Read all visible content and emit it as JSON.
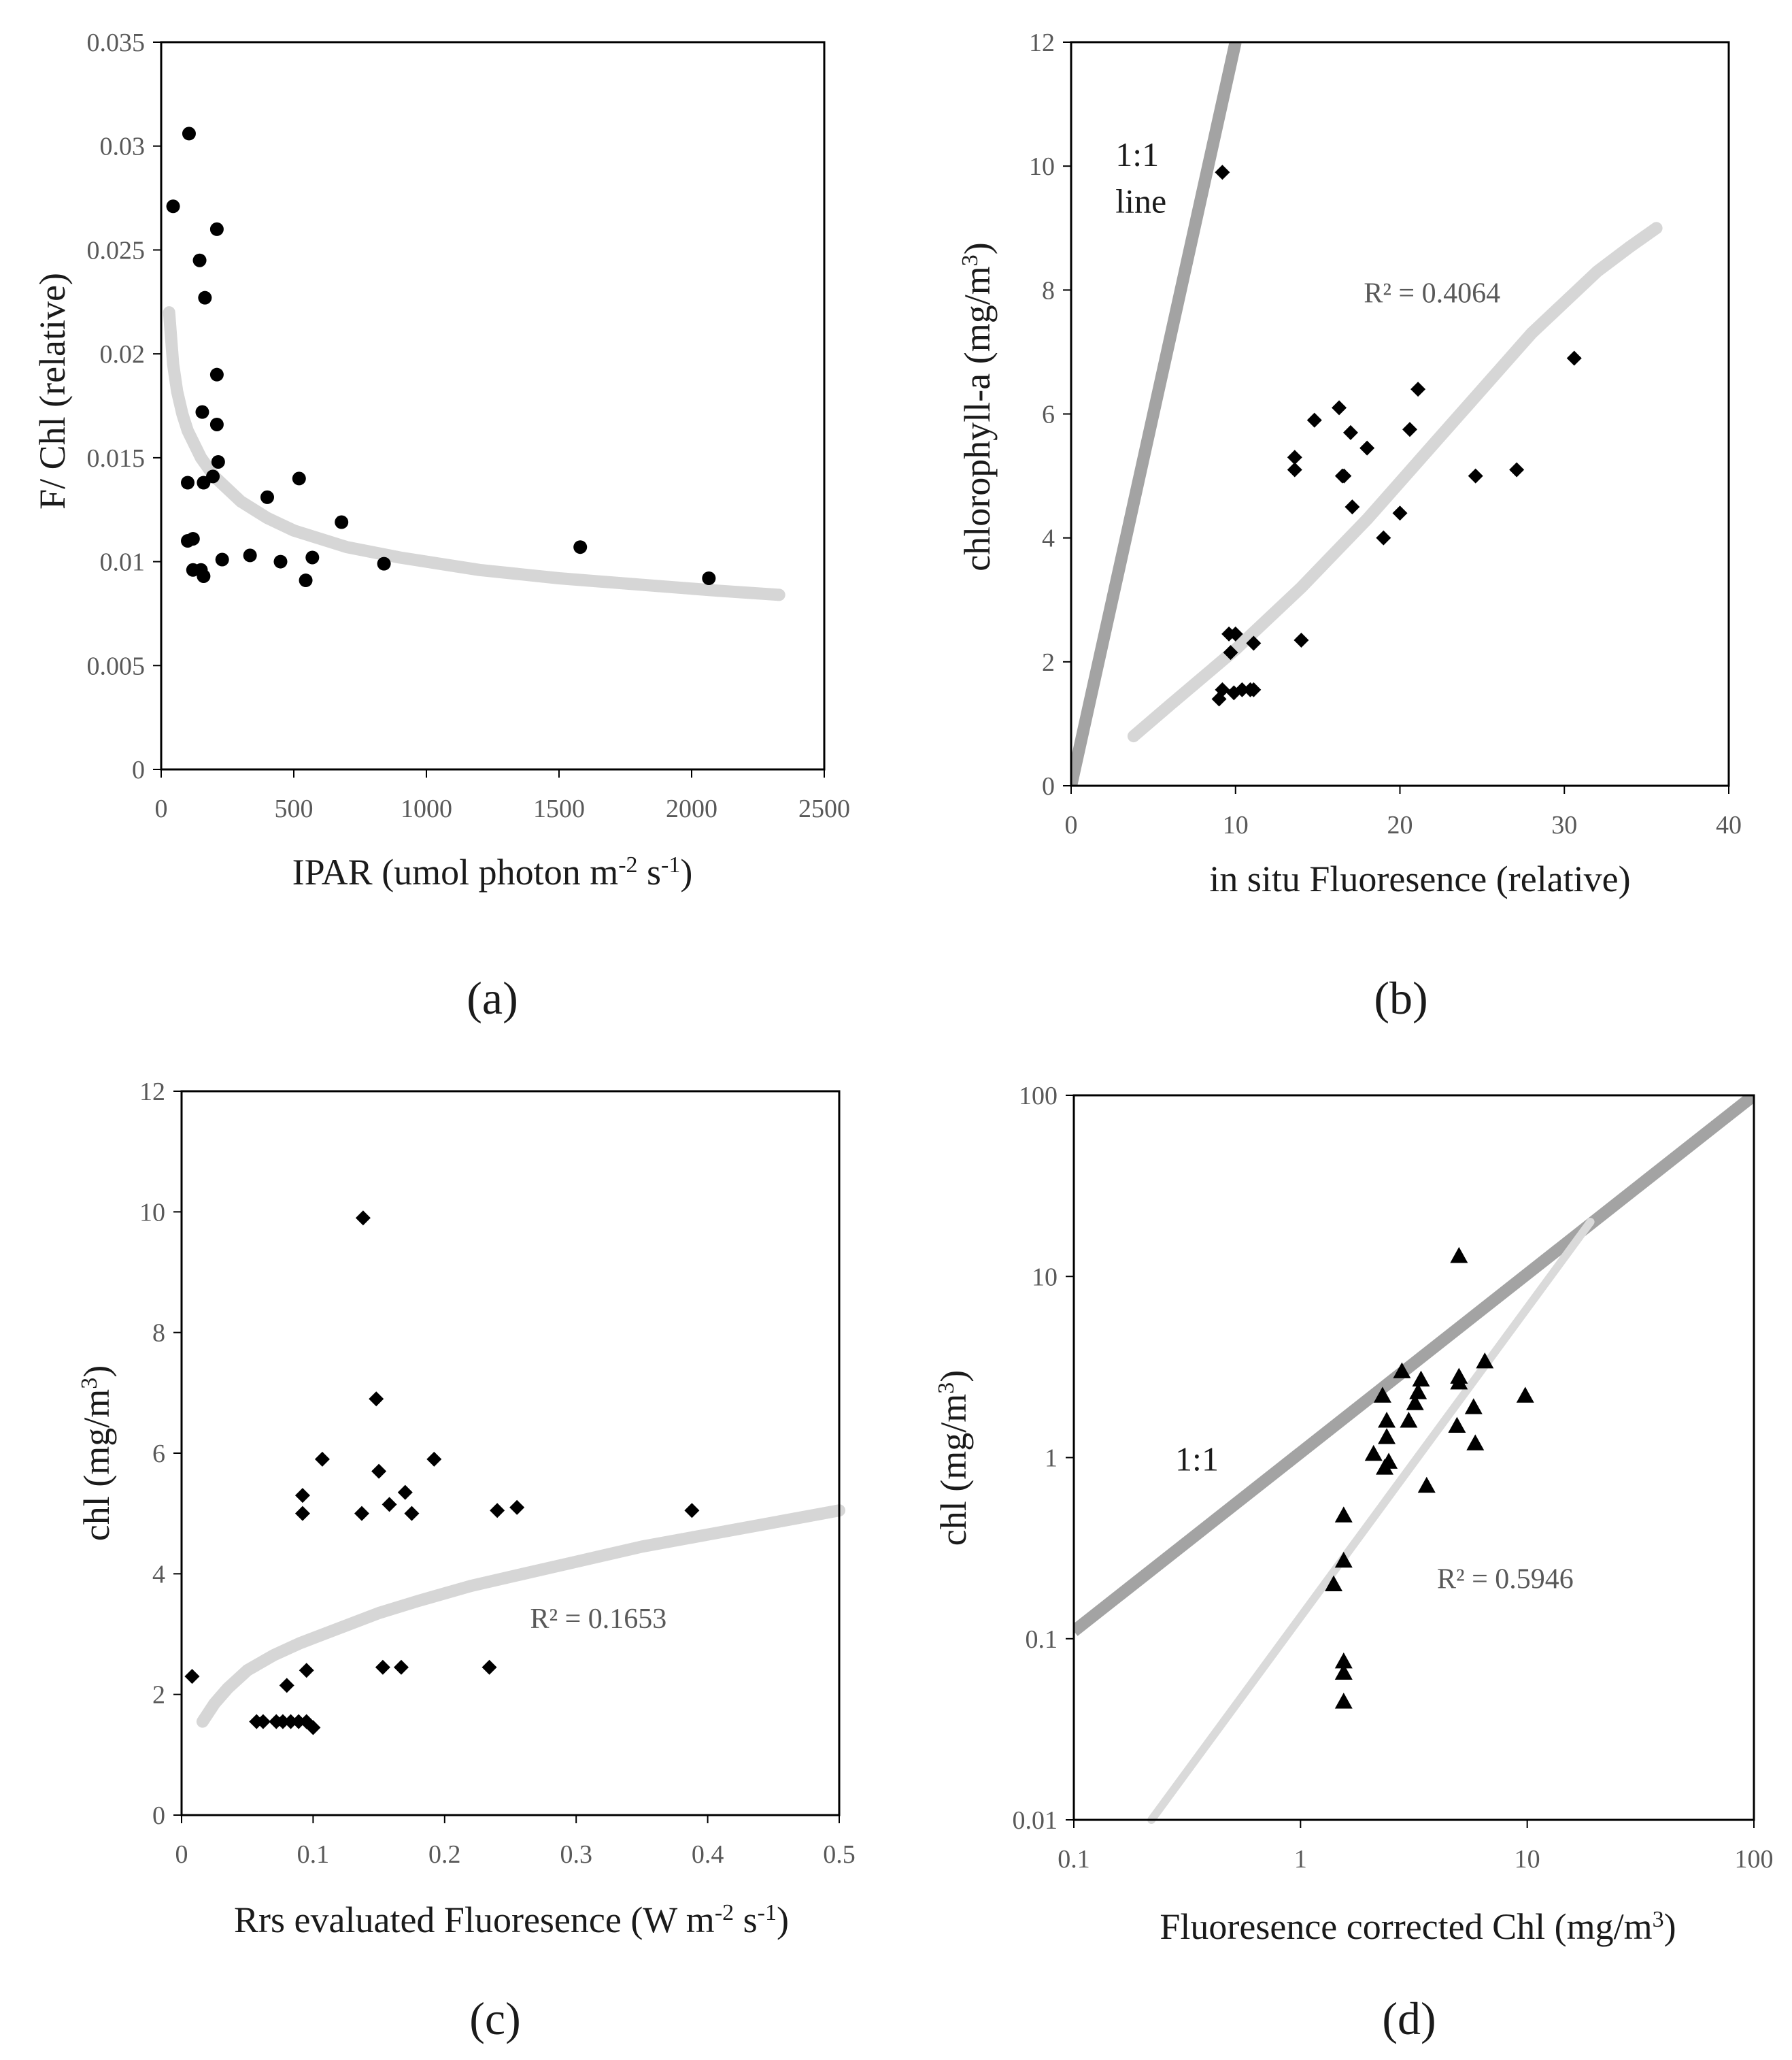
{
  "chart_data": [
    {
      "id": "a",
      "type": "scatter",
      "panel_label": "(a)",
      "title": "",
      "xlabel": "IPAR (umol photon m-2 s-1)",
      "xlabel_base": "IPAR (umol photon m",
      "xlabel_sup1": "-2",
      "xlabel_mid": " s",
      "xlabel_sup2": "-1",
      "xlabel_end": ")",
      "ylabel": "F/ Chl (relative)",
      "xscale": "linear",
      "yscale": "linear",
      "xlim": [
        0,
        2500
      ],
      "ylim": [
        0,
        0.035
      ],
      "xticks": [
        0,
        500,
        1000,
        1500,
        2000,
        2500
      ],
      "xtick_labels": [
        "0",
        "500",
        "1000",
        "1500",
        "2000",
        "2500"
      ],
      "yticks": [
        0,
        0.005,
        0.01,
        0.015,
        0.02,
        0.025,
        0.03,
        0.035
      ],
      "ytick_labels": [
        "0",
        "0.005",
        "0.01",
        "0.015",
        "0.02",
        "0.025",
        "0.03",
        "0.035"
      ],
      "marker": "circle",
      "points": [
        [
          45,
          0.0271
        ],
        [
          105,
          0.0306
        ],
        [
          145,
          0.0245
        ],
        [
          165,
          0.0227
        ],
        [
          210,
          0.026
        ],
        [
          210,
          0.019
        ],
        [
          155,
          0.0172
        ],
        [
          210,
          0.0166
        ],
        [
          215,
          0.0148
        ],
        [
          195,
          0.0141
        ],
        [
          160,
          0.0138
        ],
        [
          100,
          0.0138
        ],
        [
          100,
          0.011
        ],
        [
          120,
          0.0111
        ],
        [
          120,
          0.0096
        ],
        [
          150,
          0.0096
        ],
        [
          160,
          0.0093
        ],
        [
          230,
          0.0101
        ],
        [
          335,
          0.0103
        ],
        [
          400,
          0.0131
        ],
        [
          450,
          0.01
        ],
        [
          520,
          0.014
        ],
        [
          545,
          0.0091
        ],
        [
          570,
          0.0102
        ],
        [
          680,
          0.0119
        ],
        [
          840,
          0.0099
        ],
        [
          1580,
          0.0107
        ],
        [
          2065,
          0.0092
        ]
      ],
      "trend": {
        "kind": "power",
        "points": [
          [
            30,
            0.022
          ],
          [
            45,
            0.0195
          ],
          [
            60,
            0.0182
          ],
          [
            80,
            0.0171
          ],
          [
            100,
            0.0163
          ],
          [
            150,
            0.015
          ],
          [
            200,
            0.0141
          ],
          [
            300,
            0.0129
          ],
          [
            400,
            0.0121
          ],
          [
            500,
            0.0115
          ],
          [
            700,
            0.0107
          ],
          [
            900,
            0.0102
          ],
          [
            1200,
            0.0096
          ],
          [
            1500,
            0.0092
          ],
          [
            1800,
            0.0089
          ],
          [
            2100,
            0.0086
          ],
          [
            2330,
            0.0084
          ]
        ]
      }
    },
    {
      "id": "b",
      "type": "scatter",
      "panel_label": "(b)",
      "title": "",
      "xlabel": "in situ Fluoresence  (relative)",
      "ylabel": "chlorophyll-a (mg/m3)",
      "ylabel_base": "chlorophyll-a (mg/m",
      "ylabel_sup": "3",
      "ylabel_end": ")",
      "xscale": "linear",
      "yscale": "linear",
      "xlim": [
        0,
        40
      ],
      "ylim": [
        0,
        12
      ],
      "xticks": [
        0,
        10,
        20,
        30,
        40
      ],
      "xtick_labels": [
        "0",
        "10",
        "20",
        "30",
        "40"
      ],
      "yticks": [
        0,
        2,
        4,
        6,
        8,
        10,
        12
      ],
      "ytick_labels": [
        "0",
        "2",
        "4",
        "6",
        "8",
        "10",
        "12"
      ],
      "marker": "diamond",
      "points": [
        [
          9.2,
          9.9
        ],
        [
          9.0,
          1.4
        ],
        [
          9.2,
          1.55
        ],
        [
          9.6,
          2.45
        ],
        [
          10.0,
          2.45
        ],
        [
          9.7,
          2.15
        ],
        [
          9.9,
          1.5
        ],
        [
          10.4,
          1.55
        ],
        [
          10.9,
          1.55
        ],
        [
          11.1,
          1.55
        ],
        [
          11.1,
          2.3
        ],
        [
          14.0,
          2.35
        ],
        [
          13.6,
          5.3
        ],
        [
          13.6,
          5.1
        ],
        [
          14.8,
          5.9
        ],
        [
          16.3,
          6.1
        ],
        [
          16.6,
          5.0
        ],
        [
          16.5,
          5.0
        ],
        [
          17.0,
          5.7
        ],
        [
          17.1,
          4.5
        ],
        [
          18.0,
          5.45
        ],
        [
          19.0,
          4.0
        ],
        [
          20.0,
          4.4
        ],
        [
          20.6,
          5.75
        ],
        [
          21.1,
          6.4
        ],
        [
          24.6,
          5.0
        ],
        [
          27.1,
          5.1
        ],
        [
          30.6,
          6.9
        ]
      ],
      "one_to_one": {
        "points": [
          [
            0,
            0
          ],
          [
            10,
            12
          ]
        ]
      },
      "trend": {
        "kind": "power",
        "r2_label": "R² = 0.4064",
        "points": [
          [
            3.8,
            0.8
          ],
          [
            6,
            1.3
          ],
          [
            8,
            1.75
          ],
          [
            10,
            2.2
          ],
          [
            12,
            2.7
          ],
          [
            14,
            3.2
          ],
          [
            16,
            3.75
          ],
          [
            18,
            4.3
          ],
          [
            20,
            4.9
          ],
          [
            22,
            5.5
          ],
          [
            24,
            6.1
          ],
          [
            26,
            6.7
          ],
          [
            28,
            7.3
          ],
          [
            30,
            7.8
          ],
          [
            32,
            8.3
          ],
          [
            34,
            8.7
          ],
          [
            35.6,
            9.0
          ]
        ]
      },
      "annotations": [
        {
          "text": "1:1",
          "x": 2.7,
          "y": 10.0
        },
        {
          "text": "line",
          "x": 2.7,
          "y": 9.25
        },
        {
          "text": "R² = 0.4064",
          "x": 17.8,
          "y": 7.8
        }
      ]
    },
    {
      "id": "c",
      "type": "scatter",
      "panel_label": "(c)",
      "title": "",
      "xlabel": "Rrs evaluated Fluoresence  (W m-2 s-1)",
      "xlabel_base": "Rrs evaluated Fluoresence  (W m",
      "xlabel_sup1": "-2",
      "xlabel_mid": " s",
      "xlabel_sup2": "-1",
      "xlabel_end": ")",
      "ylabel": "chl (mg/m3)",
      "ylabel_base": "chl (mg/m",
      "ylabel_sup": "3",
      "ylabel_end": ")",
      "xscale": "linear",
      "yscale": "linear",
      "xlim": [
        0,
        0.5
      ],
      "ylim": [
        0,
        12
      ],
      "xticks": [
        0,
        0.1,
        0.2,
        0.3,
        0.4,
        0.5
      ],
      "xtick_labels": [
        "0",
        "0.1",
        "0.2",
        "0.3",
        "0.4",
        "0.5"
      ],
      "yticks": [
        0,
        2,
        4,
        6,
        8,
        10,
        12
      ],
      "ytick_labels": [
        "0",
        "2",
        "4",
        "6",
        "8",
        "10",
        "12"
      ],
      "marker": "diamond",
      "points": [
        [
          0.008,
          2.3
        ],
        [
          0.057,
          1.55
        ],
        [
          0.062,
          1.55
        ],
        [
          0.072,
          1.55
        ],
        [
          0.077,
          1.55
        ],
        [
          0.083,
          1.55
        ],
        [
          0.089,
          1.55
        ],
        [
          0.095,
          1.55
        ],
        [
          0.1,
          1.45
        ],
        [
          0.08,
          2.15
        ],
        [
          0.095,
          2.4
        ],
        [
          0.092,
          5.3
        ],
        [
          0.092,
          5.0
        ],
        [
          0.107,
          5.9
        ],
        [
          0.138,
          9.9
        ],
        [
          0.137,
          5.0
        ],
        [
          0.148,
          6.9
        ],
        [
          0.15,
          5.7
        ],
        [
          0.153,
          2.45
        ],
        [
          0.158,
          5.15
        ],
        [
          0.167,
          2.45
        ],
        [
          0.17,
          5.35
        ],
        [
          0.175,
          5.0
        ],
        [
          0.192,
          5.9
        ],
        [
          0.234,
          2.45
        ],
        [
          0.24,
          5.05
        ],
        [
          0.255,
          5.1
        ],
        [
          0.388,
          5.05
        ]
      ],
      "trend": {
        "kind": "log",
        "r2_label": "R² = 0.1653",
        "points": [
          [
            0.016,
            1.55
          ],
          [
            0.025,
            1.85
          ],
          [
            0.035,
            2.1
          ],
          [
            0.05,
            2.4
          ],
          [
            0.07,
            2.65
          ],
          [
            0.09,
            2.85
          ],
          [
            0.12,
            3.1
          ],
          [
            0.15,
            3.35
          ],
          [
            0.18,
            3.55
          ],
          [
            0.22,
            3.8
          ],
          [
            0.26,
            4.0
          ],
          [
            0.3,
            4.2
          ],
          [
            0.35,
            4.45
          ],
          [
            0.4,
            4.65
          ],
          [
            0.45,
            4.85
          ],
          [
            0.5,
            5.05
          ]
        ]
      },
      "annotations": [
        {
          "text": "R² = 0.1653",
          "x": 0.265,
          "y": 3.1
        }
      ]
    },
    {
      "id": "d",
      "type": "scatter",
      "panel_label": "(d)",
      "title": "",
      "xlabel": "Fluoresence corrected Chl (mg/m3)",
      "xlabel_base": "Fluoresence corrected Chl (mg/m",
      "xlabel_sup1": "3",
      "xlabel_end": ")",
      "ylabel": "chl (mg/m3)",
      "ylabel_base": "chl (mg/m",
      "ylabel_sup": "3",
      "ylabel_end": ")",
      "xscale": "log",
      "yscale": "log",
      "xlim": [
        0.1,
        100
      ],
      "ylim": [
        0.01,
        100
      ],
      "xticks": [
        0.1,
        1,
        10,
        100
      ],
      "xtick_labels": [
        "0.1",
        "1",
        "10",
        "100"
      ],
      "yticks": [
        0.01,
        0.1,
        1,
        10,
        100
      ],
      "ytick_labels": [
        "0.01",
        "0.1",
        "1",
        "10",
        "100"
      ],
      "marker": "triangle",
      "points": [
        [
          5.0,
          13.0
        ],
        [
          2.8,
          3.0
        ],
        [
          6.5,
          3.4
        ],
        [
          2.3,
          2.2
        ],
        [
          3.3,
          2.3
        ],
        [
          3.4,
          2.7
        ],
        [
          5.0,
          2.8
        ],
        [
          5.0,
          2.6
        ],
        [
          9.8,
          2.2
        ],
        [
          3.2,
          2.0
        ],
        [
          5.8,
          1.9
        ],
        [
          2.4,
          1.6
        ],
        [
          3.0,
          1.6
        ],
        [
          4.9,
          1.5
        ],
        [
          2.4,
          1.3
        ],
        [
          5.9,
          1.2
        ],
        [
          2.1,
          1.05
        ],
        [
          2.45,
          0.95
        ],
        [
          2.35,
          0.88
        ],
        [
          3.6,
          0.7
        ],
        [
          1.55,
          0.48
        ],
        [
          1.55,
          0.27
        ],
        [
          1.4,
          0.2
        ],
        [
          1.55,
          0.075
        ],
        [
          1.55,
          0.065
        ],
        [
          1.55,
          0.045
        ]
      ],
      "one_to_one": {
        "points": [
          [
            0.1,
            0.11
          ],
          [
            100,
            100
          ]
        ]
      },
      "trend": {
        "kind": "power",
        "r2_label": "R² = 0.5946",
        "points": [
          [
            0.22,
            0.01
          ],
          [
            19,
            20
          ]
        ]
      },
      "annotations": [
        {
          "text": "1:1",
          "x": 0.28,
          "y": 0.85
        },
        {
          "text": "R² = 0.5946",
          "x": 4.0,
          "y": 0.19
        }
      ]
    }
  ],
  "colors": {
    "marker": "#000000",
    "trend": "#d6d6d6",
    "one_to_one": "#a3a3a3",
    "trend_d": "#dadada",
    "axis": "#000000",
    "tick_text": "#595959"
  }
}
